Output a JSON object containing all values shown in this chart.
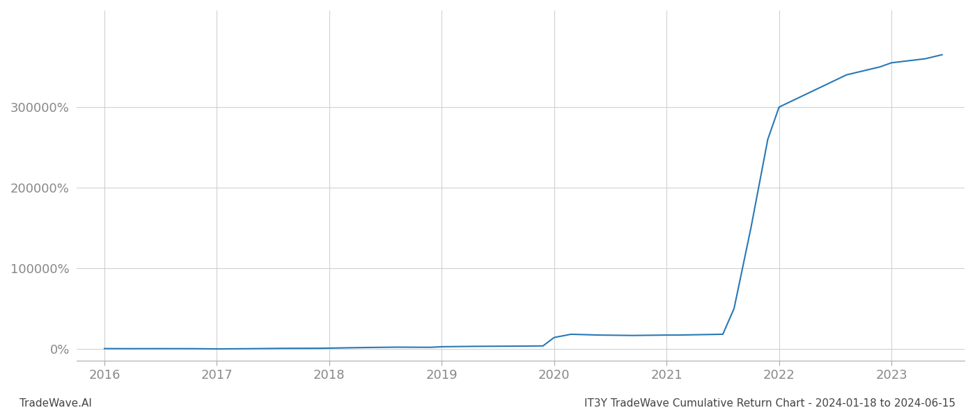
{
  "title": "",
  "xlabel": "",
  "ylabel": "",
  "footer_left": "TradeWave.AI",
  "footer_right": "IT3Y TradeWave Cumulative Return Chart - 2024-01-18 to 2024-06-15",
  "line_color": "#2878b5",
  "background_color": "#ffffff",
  "grid_color": "#cccccc",
  "x_values": [
    2016.0,
    2016.2,
    2016.5,
    2016.8,
    2017.0,
    2017.3,
    2017.6,
    2017.9,
    2018.0,
    2018.3,
    2018.6,
    2018.9,
    2019.0,
    2019.3,
    2019.6,
    2019.9,
    2020.0,
    2020.15,
    2020.4,
    2020.7,
    2021.0,
    2021.1,
    2021.3,
    2021.5,
    2021.6,
    2021.75,
    2021.9,
    2022.0,
    2022.3,
    2022.6,
    2022.9,
    2023.0,
    2023.3,
    2023.45
  ],
  "y_values": [
    200,
    100,
    150,
    100,
    -200,
    100,
    500,
    600,
    800,
    1500,
    2000,
    1800,
    2500,
    3000,
    3200,
    3500,
    14000,
    18000,
    17000,
    16500,
    17000,
    17000,
    17500,
    18000,
    50000,
    150000,
    260000,
    300000,
    320000,
    340000,
    350000,
    355000,
    360000,
    365000
  ],
  "yticks": [
    0,
    100000,
    200000,
    300000
  ],
  "xticks": [
    2016,
    2017,
    2018,
    2019,
    2020,
    2021,
    2022,
    2023
  ],
  "xtick_labels": [
    "2016",
    "2017",
    "2018",
    "2019",
    "2020",
    "2021",
    "2022",
    "2023"
  ],
  "ylim": [
    -15000,
    420000
  ],
  "xlim": [
    2015.75,
    2023.65
  ],
  "line_width": 1.5
}
